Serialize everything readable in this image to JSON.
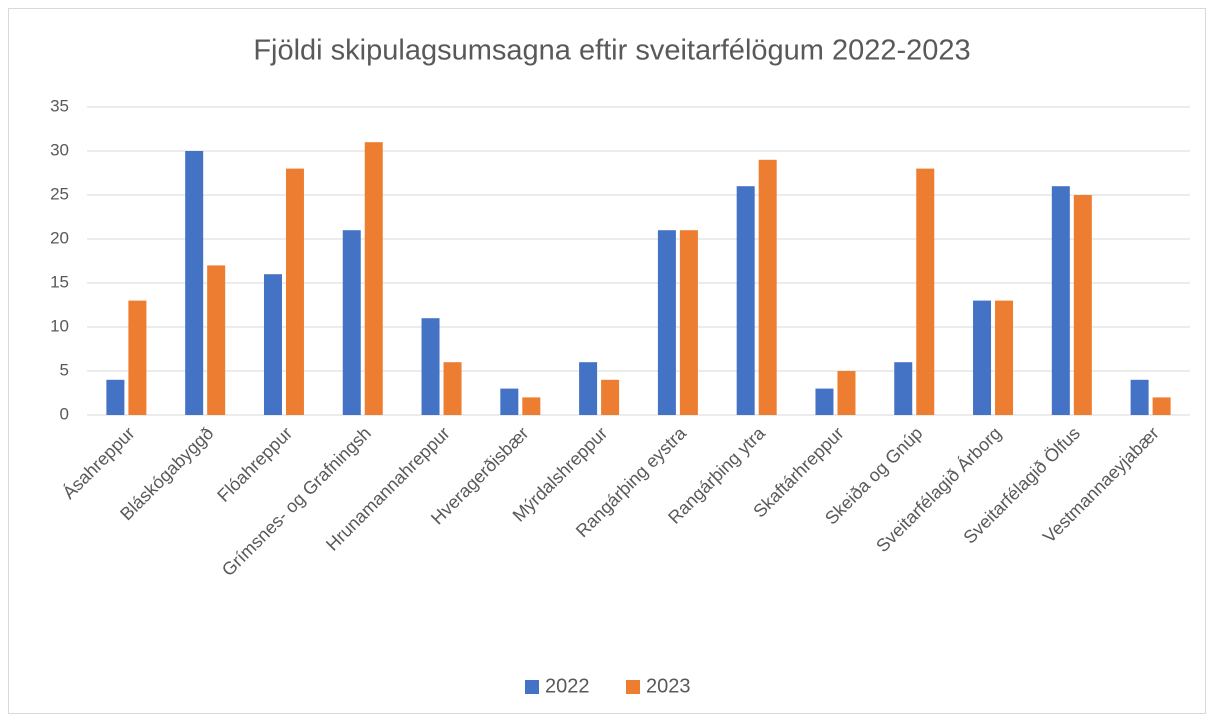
{
  "chart_data": {
    "type": "bar",
    "title": "Fjöldi skipulagsumsagna eftir sveitarfélögum 2022-2023",
    "categories": [
      "Ásahreppur",
      "Bláskógabyggð",
      "Flóahreppur",
      "Grímsnes- og Grafningsh",
      "Hrunamannahreppur",
      "Hveragerðisbær",
      "Mýrdalshreppur",
      "Rangárþing eystra",
      "Rangárþing ytra",
      "Skaftárhreppur",
      "Skeiða og Gnúp",
      "Sveitarfélagið Árborg",
      "Sveitarfélagið Ölfus",
      "Vestmannaeyjabær"
    ],
    "series": [
      {
        "name": "2022",
        "color": "#4472c4",
        "values": [
          4,
          30,
          16,
          21,
          11,
          3,
          6,
          21,
          26,
          3,
          6,
          13,
          26,
          4
        ]
      },
      {
        "name": "2023",
        "color": "#ed7d31",
        "values": [
          13,
          17,
          28,
          31,
          6,
          2,
          4,
          21,
          29,
          5,
          28,
          13,
          25,
          2
        ]
      }
    ],
    "ylim": [
      0,
      35
    ],
    "yticks": [
      0,
      5,
      10,
      15,
      20,
      25,
      30,
      35
    ],
    "grid": true,
    "legend": "bottom"
  }
}
